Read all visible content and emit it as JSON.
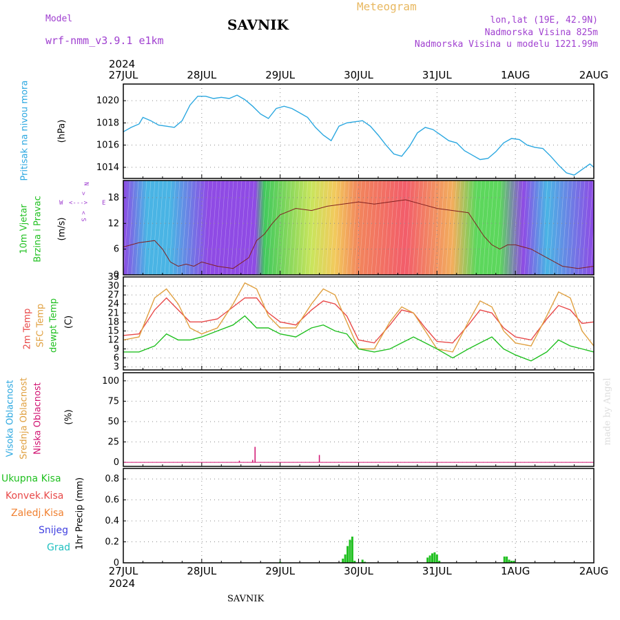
{
  "header": {
    "model_label": "Model",
    "model_name": "wrf-nmm_v3.9.1 e1km",
    "title": "SAVNIK",
    "meteogram": "Meteogram",
    "lonlat": "lon,lat (19E, 42.9N)",
    "elevation": "Nadmorska Visina 825m",
    "model_elevation": "Nadmorska Visina u modelu 1221.99m",
    "year_top": "2024",
    "year_bottom": "2024",
    "footer": "SAVNIK",
    "credit": "made by Angel"
  },
  "dates": [
    "27JUL",
    "28JUL",
    "29JUL",
    "30JUL",
    "31JUL",
    "1AUG",
    "2AUG"
  ],
  "colors": {
    "pressure": "#2aa7e0",
    "temp2m": "#e84848",
    "sfc": "#e0a040",
    "dewpt": "#20c020",
    "high_cloud": "#2aa7e0",
    "mid_cloud": "#e0a040",
    "low_cloud": "#d01070",
    "total_precip": "#20c020",
    "conv_precip": "#e84848",
    "frozen_precip": "#f08030",
    "snow": "#4040e0",
    "hail": "#20c0c0",
    "model_label": "#a040d0"
  },
  "panels": {
    "pressure": {
      "label": "Pritisak na nivou mora",
      "unit": "(hPa)",
      "ticks": [
        "1014",
        "1016",
        "1018",
        "1020"
      ]
    },
    "wind": {
      "label1": "10m Vjetar",
      "label2": "Brzina i Pravac",
      "unit": "(m/s)",
      "ticks": [
        "0",
        "6",
        "12",
        "18"
      ],
      "compass_n": "N",
      "compass_s": "S",
      "compass_w": "W",
      "compass_e": "E"
    },
    "temp": {
      "label1": "2m Temp",
      "label2": "SFC Temp",
      "label3": "dewpt Temp",
      "unit": "(C)",
      "ticks": [
        "3",
        "6",
        "9",
        "12",
        "15",
        "18",
        "21",
        "24",
        "27",
        "30",
        "33"
      ]
    },
    "cloud": {
      "label1": "Visoka Oblacnost",
      "label2": "Srednja Oblacnost",
      "label3": "Niska Oblacnost",
      "unit": "(%)",
      "ticks": [
        "0",
        "25",
        "50",
        "75",
        "100"
      ]
    },
    "precip": {
      "legend": [
        "Ukupna Kisa",
        "Konvek.Kisa",
        "Zaledj.Kisa",
        "Snijeg",
        "Grad"
      ],
      "unit": "1hr Precip (mm)",
      "ticks": [
        "0",
        "0.2",
        "0.4",
        "0.6",
        "0.8"
      ]
    }
  },
  "chart_data": [
    {
      "type": "line",
      "title": "Pritisak na nivou mora",
      "ylabel": "(hPa)",
      "x_unit": "days since 27JUL 00UTC",
      "ylim": [
        1013,
        1021.5
      ],
      "series": [
        {
          "name": "Pritisak na nivou mora",
          "x": [
            0,
            0.1,
            0.2,
            0.25,
            0.35,
            0.45,
            0.55,
            0.65,
            0.75,
            0.85,
            0.95,
            1.05,
            1.15,
            1.25,
            1.35,
            1.45,
            1.55,
            1.65,
            1.75,
            1.85,
            1.95,
            2.05,
            2.15,
            2.25,
            2.35,
            2.45,
            2.55,
            2.65,
            2.75,
            2.85,
            2.95,
            3.05,
            3.15,
            3.25,
            3.35,
            3.45,
            3.55,
            3.65,
            3.75,
            3.85,
            3.95,
            4.05,
            4.15,
            4.25,
            4.35,
            4.45,
            4.55,
            4.65,
            4.75,
            4.85,
            4.95,
            5.05,
            5.15,
            5.25,
            5.35,
            5.45,
            5.55,
            5.65,
            5.75,
            5.85,
            5.95,
            6.0
          ],
          "values": [
            1017.2,
            1017.6,
            1017.9,
            1018.5,
            1018.2,
            1017.8,
            1017.7,
            1017.6,
            1018.2,
            1019.6,
            1020.4,
            1020.4,
            1020.2,
            1020.3,
            1020.2,
            1020.5,
            1020.1,
            1019.5,
            1018.8,
            1018.4,
            1019.3,
            1019.5,
            1019.3,
            1018.9,
            1018.5,
            1017.6,
            1016.9,
            1016.4,
            1017.7,
            1018.0,
            1018.1,
            1018.2,
            1017.7,
            1016.9,
            1016.0,
            1015.2,
            1015.0,
            1015.9,
            1017.1,
            1017.6,
            1017.4,
            1016.9,
            1016.4,
            1016.2,
            1015.5,
            1015.1,
            1014.7,
            1014.8,
            1015.4,
            1016.2,
            1016.6,
            1016.5,
            1016.0,
            1015.8,
            1015.7,
            1015.0,
            1014.2,
            1013.5,
            1013.3,
            1013.8,
            1014.3,
            1014.0
          ]
        }
      ]
    },
    {
      "type": "line",
      "title": "10m Vjetar Brzina i Pravac",
      "ylabel": "(m/s)",
      "ylim": [
        0,
        22
      ],
      "series": [
        {
          "name": "10m Vjetar",
          "x": [
            0,
            0.2,
            0.4,
            0.5,
            0.6,
            0.7,
            0.8,
            0.9,
            1.0,
            1.2,
            1.4,
            1.6,
            1.7,
            1.8,
            1.9,
            2.0,
            2.2,
            2.4,
            2.6,
            2.8,
            3.0,
            3.2,
            3.4,
            3.6,
            3.8,
            4.0,
            4.2,
            4.4,
            4.6,
            4.7,
            4.8,
            4.9,
            5.0,
            5.2,
            5.4,
            5.6,
            5.8,
            6.0
          ],
          "values": [
            6.5,
            7.5,
            8.0,
            6.0,
            3.0,
            2.0,
            2.5,
            2.0,
            3.0,
            2.0,
            1.5,
            4.0,
            8.0,
            9.5,
            12.0,
            14.0,
            15.5,
            15.0,
            16.0,
            16.5,
            17.0,
            16.5,
            17.0,
            17.5,
            16.5,
            15.5,
            15.0,
            14.5,
            9.0,
            7.0,
            6.0,
            7.0,
            7.0,
            6.0,
            4.0,
            2.0,
            1.5,
            2.0
          ]
        }
      ]
    },
    {
      "type": "line",
      "title": "2m Temp / SFC Temp / dewpt Temp",
      "ylabel": "(C)",
      "ylim": [
        2,
        33
      ],
      "series": [
        {
          "name": "2m Temp",
          "x": [
            0,
            0.2,
            0.4,
            0.55,
            0.7,
            0.85,
            1.0,
            1.2,
            1.4,
            1.55,
            1.7,
            1.85,
            2.0,
            2.2,
            2.4,
            2.55,
            2.7,
            2.85,
            3.0,
            3.2,
            3.4,
            3.55,
            3.7,
            3.85,
            4.0,
            4.2,
            4.4,
            4.55,
            4.7,
            4.85,
            5.0,
            5.2,
            5.4,
            5.55,
            5.7,
            5.85,
            6.0
          ],
          "values": [
            13.5,
            14,
            22,
            26,
            22,
            18,
            18,
            19,
            23,
            26,
            26,
            21,
            18,
            17,
            22,
            25,
            24,
            20,
            12,
            11,
            17,
            22,
            21,
            16,
            11.5,
            11,
            17,
            22,
            21,
            16,
            13,
            12,
            19,
            23.5,
            22,
            17.5,
            18
          ]
        },
        {
          "name": "SFC Temp",
          "x": [
            0,
            0.2,
            0.4,
            0.55,
            0.7,
            0.85,
            1.0,
            1.2,
            1.4,
            1.55,
            1.7,
            1.85,
            2.0,
            2.2,
            2.4,
            2.55,
            2.7,
            2.85,
            3.0,
            3.2,
            3.4,
            3.55,
            3.7,
            3.85,
            4.0,
            4.2,
            4.4,
            4.55,
            4.7,
            4.85,
            5.0,
            5.2,
            5.4,
            5.55,
            5.7,
            5.85,
            6.0
          ],
          "values": [
            12,
            13,
            26,
            29,
            24,
            16,
            14,
            16,
            24,
            31,
            29,
            20,
            16,
            16,
            24,
            29,
            27,
            18,
            9,
            9,
            18,
            23,
            21,
            15,
            9,
            8,
            18,
            25,
            23,
            15,
            11,
            10,
            20,
            28,
            26,
            15,
            10
          ]
        },
        {
          "name": "dewpt Temp",
          "x": [
            0,
            0.2,
            0.4,
            0.55,
            0.7,
            0.85,
            1.0,
            1.2,
            1.4,
            1.55,
            1.7,
            1.85,
            2.0,
            2.2,
            2.4,
            2.55,
            2.7,
            2.85,
            3.0,
            3.2,
            3.4,
            3.55,
            3.7,
            3.85,
            4.0,
            4.2,
            4.4,
            4.55,
            4.7,
            4.85,
            5.0,
            5.2,
            5.4,
            5.55,
            5.7,
            5.85,
            6.0
          ],
          "values": [
            8,
            8,
            10,
            14,
            12,
            12,
            13,
            15,
            17,
            20,
            16,
            16,
            14,
            13,
            16,
            17,
            15,
            14,
            9,
            8,
            9,
            11,
            13,
            11,
            9,
            6,
            9,
            11,
            13,
            9,
            7,
            5,
            8,
            12,
            10,
            9,
            8
          ]
        }
      ]
    },
    {
      "type": "bar",
      "title": "Visoka / Srednja / Niska Oblacnost",
      "ylabel": "(%)",
      "ylim": [
        -5,
        110
      ],
      "series": [
        {
          "name": "Niska Oblacnost",
          "x": [
            1.48,
            1.65,
            1.68,
            2.5
          ],
          "values": [
            2,
            3,
            19,
            9
          ]
        }
      ]
    },
    {
      "type": "bar",
      "title": "1hr Precip (mm)",
      "ylabel": "1hr Precip (mm)",
      "ylim": [
        0,
        0.9
      ],
      "series": [
        {
          "name": "Ukupna Kisa",
          "x": [
            2.0,
            2.8,
            2.83,
            2.86,
            2.89,
            2.92,
            2.95,
            3.05,
            3.08,
            3.88,
            3.91,
            3.94,
            3.97,
            4.0,
            4.03,
            4.86,
            4.89,
            4.92,
            4.95,
            4.98
          ],
          "values": [
            0.01,
            0.04,
            0.08,
            0.16,
            0.22,
            0.25,
            0.02,
            0.03,
            0.01,
            0.05,
            0.07,
            0.09,
            0.1,
            0.08,
            0.02,
            0.06,
            0.06,
            0.03,
            0.02,
            0.02
          ]
        }
      ]
    }
  ]
}
